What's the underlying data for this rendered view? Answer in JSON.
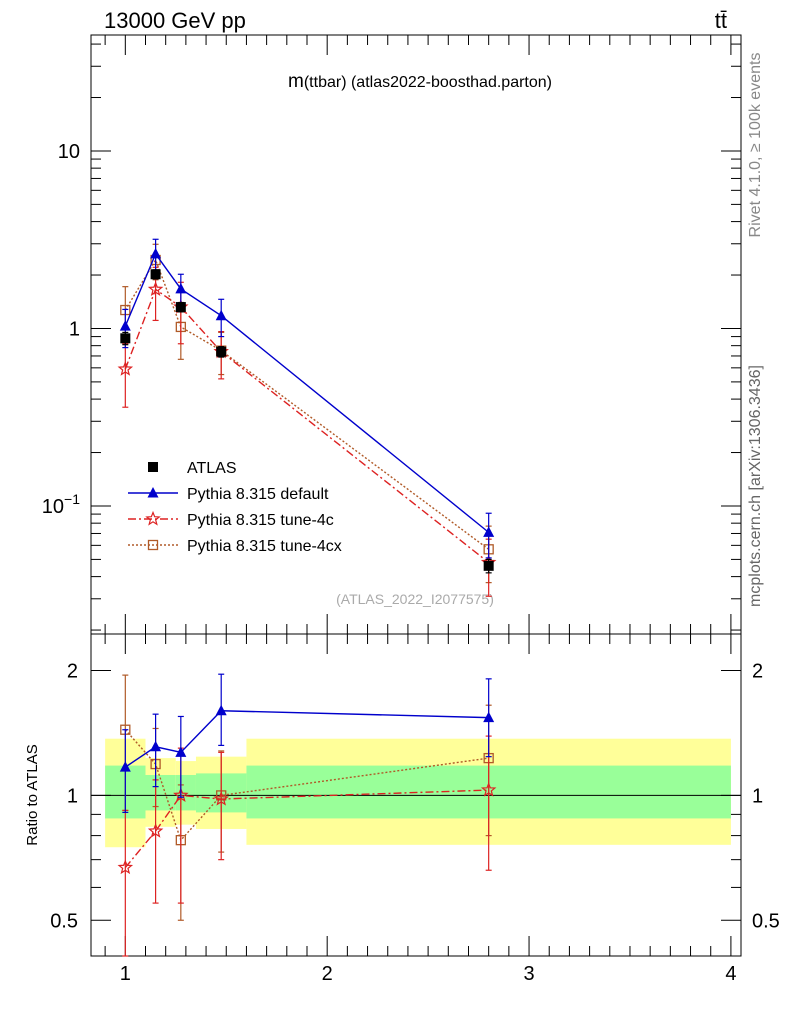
{
  "header": {
    "process": "13000 GeV pp",
    "final_state": "tt̄"
  },
  "side_text": {
    "rivet": "Rivet 4.1.0, ≥ 100k events",
    "source": "mcplots.cern.ch [arXiv:1306.3436]"
  },
  "colors": {
    "atlas": "#000000",
    "default": "#0000cc",
    "tune4c": "#dd2222",
    "tune4cx": "#b05a28",
    "band_inner": "#99ff99",
    "band_outer": "#ffff99"
  },
  "chart_data": {
    "type": "line",
    "title": "m(ttbar) (atlas2022-boosthad.parton)",
    "title_main": "m",
    "title_sub": "(ttbar) (atlas2022-boosthad.parton)",
    "watermark": "(ATLAS_2022_I2077575)",
    "xlim": [
      0.83,
      4.05
    ],
    "x_ticks": [
      "1",
      "2",
      "3",
      "4"
    ],
    "main": {
      "yscale": "log",
      "ylim": [
        0.019,
        45
      ],
      "y_ticks": [
        "10",
        "1",
        "10−1"
      ],
      "series": [
        {
          "name": "ATLAS",
          "key": "atlas",
          "marker": "filled-square",
          "x": [
            1.0,
            1.15,
            1.275,
            1.475,
            2.8
          ],
          "y": [
            0.88,
            2.02,
            1.32,
            0.74,
            0.046
          ],
          "yerr": [
            0.07,
            0.12,
            0.08,
            0.05,
            0.004
          ]
        },
        {
          "name": "Pythia 8.315 default",
          "key": "default",
          "marker": "triangle",
          "x": [
            1.0,
            1.15,
            1.275,
            1.475,
            2.8
          ],
          "y": [
            1.03,
            2.63,
            1.67,
            1.18,
            0.071
          ],
          "yerr_lo": [
            0.25,
            0.55,
            0.35,
            0.28,
            0.02
          ],
          "yerr_hi": [
            0.25,
            0.55,
            0.35,
            0.28,
            0.02
          ]
        },
        {
          "name": "Pythia 8.315 tune-4c",
          "key": "tune4c",
          "marker": "open-star",
          "x": [
            1.0,
            1.15,
            1.275,
            1.475,
            2.8
          ],
          "y": [
            0.59,
            1.66,
            1.32,
            0.74,
            0.048
          ],
          "yerr_lo": [
            0.23,
            0.55,
            0.5,
            0.22,
            0.017
          ],
          "yerr_hi": [
            0.23,
            0.55,
            0.5,
            0.22,
            0.017
          ]
        },
        {
          "name": "Pythia 8.315 tune-4cx",
          "key": "tune4cx",
          "marker": "open-square",
          "x": [
            1.0,
            1.15,
            1.275,
            1.475,
            2.8
          ],
          "y": [
            1.27,
            2.43,
            1.02,
            0.75,
            0.057
          ],
          "yerr_lo": [
            0.45,
            0.55,
            0.35,
            0.2,
            0.02
          ],
          "yerr_hi": [
            0.45,
            0.55,
            0.35,
            0.2,
            0.02
          ]
        }
      ]
    },
    "ratio": {
      "ylabel": "Ratio to ATLAS",
      "ylim": [
        0.41,
        2.45
      ],
      "y_ticks": [
        "0.5",
        "1",
        "2"
      ],
      "bands": [
        {
          "x0": 0.9,
          "x1": 1.1,
          "inner": [
            0.88,
            1.18
          ],
          "outer": [
            0.75,
            1.37
          ]
        },
        {
          "x0": 1.1,
          "x1": 1.25,
          "inner": [
            0.92,
            1.12
          ],
          "outer": [
            0.84,
            1.23
          ]
        },
        {
          "x0": 1.25,
          "x1": 1.35,
          "inner": [
            0.92,
            1.12
          ],
          "outer": [
            0.85,
            1.21
          ]
        },
        {
          "x0": 1.35,
          "x1": 1.6,
          "inner": [
            0.91,
            1.13
          ],
          "outer": [
            0.83,
            1.24
          ]
        },
        {
          "x0": 1.6,
          "x1": 4.0,
          "inner": [
            0.88,
            1.18
          ],
          "outer": [
            0.76,
            1.37
          ]
        }
      ],
      "series": [
        {
          "key": "default",
          "marker": "triangle",
          "x": [
            1.0,
            1.15,
            1.275,
            1.475,
            2.8
          ],
          "y": [
            1.17,
            1.31,
            1.27,
            1.6,
            1.54
          ],
          "lo": [
            0.91,
            1.05,
            0.99,
            1.32,
            1.24
          ],
          "hi": [
            1.44,
            1.57,
            1.55,
            1.96,
            1.91
          ]
        },
        {
          "key": "tune4c",
          "marker": "open-star",
          "x": [
            1.0,
            1.15,
            1.275,
            1.475,
            2.8
          ],
          "y": [
            0.67,
            0.82,
            1.0,
            0.98,
            1.03
          ],
          "lo": [
            0.41,
            0.55,
            0.55,
            0.7,
            0.66
          ],
          "hi": [
            0.92,
            1.09,
            1.3,
            1.27,
            1.39
          ]
        },
        {
          "key": "tune4cx",
          "marker": "open-square",
          "x": [
            1.0,
            1.15,
            1.275,
            1.475,
            2.8
          ],
          "y": [
            1.44,
            1.19,
            0.78,
            1.0,
            1.23
          ],
          "lo": [
            0.92,
            0.94,
            0.5,
            0.73,
            0.8
          ],
          "hi": [
            1.95,
            1.45,
            1.06,
            1.28,
            1.65
          ]
        }
      ]
    }
  }
}
